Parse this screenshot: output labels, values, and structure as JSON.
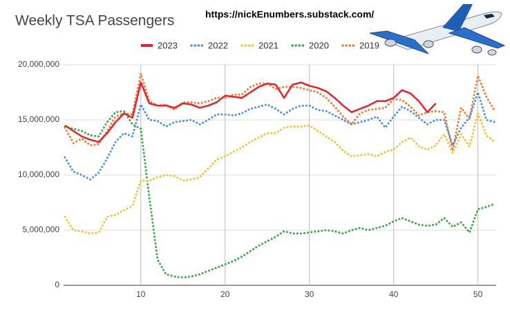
{
  "chart_data": {
    "type": "line",
    "title": "Weekly TSA Passengers",
    "source": "https://nickEnumbers.substack.com/",
    "x": [
      1,
      2,
      3,
      4,
      5,
      6,
      7,
      8,
      9,
      10,
      11,
      12,
      13,
      14,
      15,
      16,
      17,
      18,
      19,
      20,
      21,
      22,
      23,
      24,
      25,
      26,
      27,
      28,
      29,
      30,
      31,
      32,
      33,
      34,
      35,
      36,
      37,
      38,
      39,
      40,
      41,
      42,
      43,
      44,
      45,
      46,
      47,
      48,
      49,
      50,
      51,
      52
    ],
    "xlim": [
      1,
      52
    ],
    "xticks": [
      10,
      20,
      30,
      40,
      50
    ],
    "ylim": [
      0,
      20000000
    ],
    "yticks": [
      0,
      {
        "value": 5000000,
        "label": "5,000,000"
      },
      {
        "value": 10000000,
        "label": "10,000,000"
      },
      {
        "value": 15000000,
        "label": "15,000,000"
      },
      {
        "value": 20000000,
        "label": "20,000,000"
      }
    ],
    "grid": true,
    "legend": "top",
    "series": [
      {
        "name": "2023",
        "color": "#e8202a",
        "style": "solid",
        "values": [
          14500000,
          14000000,
          13500000,
          13200000,
          13000000,
          13800000,
          14800000,
          15600000,
          15200000,
          18400000,
          16500000,
          16300000,
          16300000,
          16100000,
          16500000,
          16400000,
          16100000,
          16300000,
          16600000,
          17200000,
          17100000,
          17000000,
          17500000,
          18000000,
          18300000,
          18200000,
          17000000,
          18200000,
          18400000,
          18100000,
          17900000,
          17600000,
          17000000,
          16300000,
          15700000,
          16000000,
          16300000,
          16700000,
          16700000,
          17000000,
          17700000,
          17400000,
          16700000,
          15700000,
          16500000,
          null,
          null,
          null,
          null,
          null,
          null,
          null
        ]
      },
      {
        "name": "2022",
        "color": "#4a8fe6",
        "style": "dotted",
        "values": [
          11600000,
          10300000,
          10000000,
          9600000,
          10200000,
          11500000,
          13000000,
          13800000,
          13500000,
          16400000,
          15000000,
          14900000,
          14400000,
          14800000,
          14900000,
          15000000,
          14600000,
          15000000,
          15500000,
          15500000,
          15400000,
          15600000,
          16000000,
          16200000,
          16400000,
          16000000,
          15500000,
          16000000,
          16300000,
          16300000,
          15900000,
          15800000,
          15400000,
          15000000,
          14600000,
          14800000,
          15000000,
          15300000,
          14300000,
          15300000,
          16200000,
          15800000,
          15200000,
          14600000,
          15000000,
          15000000,
          12700000,
          14300000,
          15200000,
          17500000,
          15000000,
          14800000
        ]
      },
      {
        "name": "2021",
        "color": "#f6c12c",
        "style": "dotted",
        "values": [
          6200000,
          5000000,
          4900000,
          4700000,
          4800000,
          6200000,
          6400000,
          6800000,
          7200000,
          9500000,
          9500000,
          9800000,
          10000000,
          9900000,
          9500000,
          9600000,
          9800000,
          10600000,
          11400000,
          11700000,
          12100000,
          12500000,
          13000000,
          13400000,
          13800000,
          13800000,
          14300000,
          14400000,
          14400000,
          14500000,
          14000000,
          13500000,
          13000000,
          12200000,
          11700000,
          11800000,
          11900000,
          11700000,
          12100000,
          12300000,
          13000000,
          13400000,
          12600000,
          12300000,
          12700000,
          13700000,
          12000000,
          13700000,
          12600000,
          15600000,
          13600000,
          13000000
        ]
      },
      {
        "name": "2020",
        "color": "#3aa64a",
        "style": "dotted",
        "values": [
          14400000,
          14200000,
          14000000,
          13600000,
          13500000,
          14800000,
          15700000,
          15800000,
          14600000,
          14200000,
          8000000,
          2300000,
          1000000,
          800000,
          700000,
          800000,
          1000000,
          1300000,
          1600000,
          1900000,
          2200000,
          2600000,
          3100000,
          3600000,
          4000000,
          4400000,
          4900000,
          4700000,
          4700000,
          4800000,
          4900000,
          5000000,
          4900000,
          4700000,
          5000000,
          5200000,
          5000000,
          5200000,
          5400000,
          5800000,
          6100000,
          5800000,
          5500000,
          5400000,
          5500000,
          6100000,
          5300000,
          5700000,
          4800000,
          6900000,
          7100000,
          7400000
        ]
      },
      {
        "name": "2019",
        "color": "#f07b30",
        "style": "dotted",
        "values": [
          14300000,
          12900000,
          13300000,
          12700000,
          12800000,
          14000000,
          15300000,
          15600000,
          15500000,
          19200000,
          16700000,
          16300000,
          16400000,
          15900000,
          16600000,
          16600000,
          16500000,
          16700000,
          17000000,
          17000000,
          17300000,
          17300000,
          18000000,
          18300000,
          18300000,
          17800000,
          18000000,
          18000000,
          17900000,
          17700000,
          17500000,
          17000000,
          16200000,
          15300000,
          14600000,
          15600000,
          15900000,
          16000000,
          16100000,
          16900000,
          16800000,
          16200000,
          15400000,
          15700000,
          15800000,
          15700000,
          12200000,
          16100000,
          15100000,
          19000000,
          17100000,
          15800000
        ]
      }
    ]
  }
}
